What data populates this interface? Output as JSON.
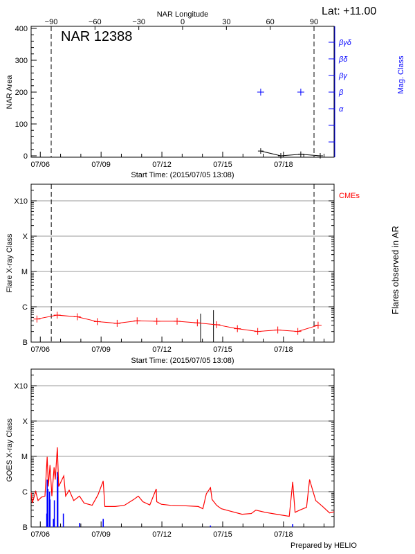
{
  "header": {
    "lat_label": "Lat: +11.00",
    "prepared_by": "Prepared by HELIO"
  },
  "colors": {
    "axis": "#000000",
    "grid": "#999999",
    "mag_class": "#0000ff",
    "flare": "#ff0000",
    "goes_long": "#ff0000",
    "goes_short": "#0000ff",
    "cme": "#ff0000"
  },
  "chart_data": [
    {
      "type": "line",
      "title": "NAR 12388",
      "xlabel": "Start Time: (2015/07/05 13:08)",
      "ylabel": "NAR Area",
      "y2label": "Mag. Class",
      "top_axis_label": "NAR Longitude",
      "top_ticks": [
        -90,
        -60,
        -30,
        0,
        30,
        60,
        90
      ],
      "limb_longitudes": [
        -90,
        90
      ],
      "xlim": [
        "2015-07-05T13:08",
        "2015-07-20T12:00"
      ],
      "x_ticks": [
        "07/06",
        "07/09",
        "07/12",
        "07/15",
        "07/18"
      ],
      "ylim": [
        0,
        400
      ],
      "y_ticks": [
        0,
        100,
        200,
        300,
        400
      ],
      "mag_classes": [
        "α",
        "β",
        "βγ",
        "βδ",
        "βγδ"
      ],
      "area_series": {
        "x": [
          "2015-07-16T21:00",
          "2015-07-17T20:50",
          "2015-07-18T20:30",
          "2015-07-19T19:30"
        ],
        "y": [
          15,
          0,
          5,
          0
        ]
      },
      "mag_series": {
        "x": [
          "2015-07-16T21:00",
          "2015-07-18T20:30"
        ],
        "class": [
          "β",
          "β"
        ]
      }
    },
    {
      "type": "line",
      "xlabel": "Start Time: (2015/07/05 13:08)",
      "ylabel": "Flare X-ray Class",
      "y2label": "Flares observed in AR",
      "cme_label": "CMEs",
      "limb_times": [
        "2015-07-06T13:00",
        "2015-07-19T12:10"
      ],
      "xlim": [
        "2015-07-05T13:08",
        "2015-07-20T12:00"
      ],
      "x_ticks": [
        "07/06",
        "07/09",
        "07/12",
        "07/15",
        "07/18"
      ],
      "y_scale": "log",
      "ylim": [
        1e-07,
        0.003
      ],
      "y_ticks": [
        {
          "label": "B",
          "value": 1e-07
        },
        {
          "label": "C",
          "value": 1e-06
        },
        {
          "label": "M",
          "value": 1e-05
        },
        {
          "label": "X",
          "value": 0.0001
        },
        {
          "label": "X10",
          "value": 0.001
        }
      ],
      "grid": true,
      "flare_series": {
        "x": [
          "2015-07-05T20:00",
          "2015-07-06T20:00",
          "2015-07-07T19:45",
          "2015-07-08T19:30",
          "2015-07-09T19:00",
          "2015-07-10T18:40",
          "2015-07-11T18:00",
          "2015-07-12T18:00",
          "2015-07-13T18:00",
          "2015-07-14T17:00",
          "2015-07-15T17:25",
          "2015-07-16T17:30",
          "2015-07-17T17:15",
          "2015-07-18T17:00",
          "2015-07-19T17:00"
        ],
        "y": [
          4.5e-07,
          5.8e-07,
          5.2e-07,
          3.8e-07,
          3.4e-07,
          4e-07,
          3.9e-07,
          3.9e-07,
          3.5e-07,
          3.1e-07,
          2.4e-07,
          2e-07,
          2.2e-07,
          2e-07,
          3e-07
        ]
      },
      "event_lines": {
        "x": [
          "2015-07-13T21:50",
          "2015-07-14T13:05"
        ],
        "y": [
          6.4e-07,
          8e-07
        ]
      }
    },
    {
      "type": "line",
      "ylabel": "GOES X-ray Class",
      "xlim": [
        "2015-07-05T13:08",
        "2015-07-20T12:00"
      ],
      "x_ticks": [
        "07/06",
        "07/09",
        "07/12",
        "07/15",
        "07/18"
      ],
      "y_scale": "log",
      "ylim": [
        1e-07,
        0.003
      ],
      "y_ticks": [
        {
          "label": "B",
          "value": 1e-07
        },
        {
          "label": "C",
          "value": 1e-06
        },
        {
          "label": "M",
          "value": 1e-05
        },
        {
          "label": "X",
          "value": 0.0001
        },
        {
          "label": "X10",
          "value": 0.001
        }
      ],
      "grid": true,
      "goes_long": {
        "x": [
          "2015-07-05T13:10",
          "2015-07-05T14:30",
          "2015-07-05T18:30",
          "2015-07-05T21:20",
          "2015-07-06T01:20",
          "2015-07-06T05:30",
          "2015-07-06T08:10",
          "2015-07-06T09:30",
          "2015-07-06T11:30",
          "2015-07-06T13:40",
          "2015-07-06T16:20",
          "2015-07-06T17:45",
          "2015-07-06T20:10",
          "2015-07-06T21:50",
          "2015-07-07T03:50",
          "2015-07-07T06:00",
          "2015-07-07T10:10",
          "2015-07-07T15:35",
          "2015-07-07T22:25",
          "2015-07-08T03:50",
          "2015-07-08T13:25",
          "2015-07-08T20:15",
          "2015-07-09T02:30",
          "2015-07-09T04:25",
          "2015-07-09T16:45",
          "2015-07-10T03:35",
          "2015-07-10T14:35",
          "2015-07-10T20:00",
          "2015-07-11T01:30",
          "2015-07-11T09:40",
          "2015-07-11T17:20",
          "2015-07-11T17:55",
          "2015-07-11T23:20",
          "2015-07-12T10:15",
          "2015-07-13T02:35",
          "2015-07-13T19:00",
          "2015-07-14T00:30",
          "2015-07-14T04:35",
          "2015-07-14T09:30",
          "2015-07-14T11:25",
          "2015-07-14T16:50",
          "2015-07-14T22:20",
          "2015-07-15T09:10",
          "2015-07-15T22:55",
          "2015-07-16T09:50",
          "2015-07-16T15:15",
          "2015-07-17T02:10",
          "2015-07-17T15:50",
          "2015-07-18T06:50",
          "2015-07-18T10:55",
          "2015-07-18T13:40",
          "2015-07-18T19:05",
          "2015-07-19T03:20",
          "2015-07-19T06:55",
          "2015-07-19T10:05",
          "2015-07-19T14:10",
          "2015-07-19T22:25",
          "2015-07-20T06:35",
          "2015-07-20T12:00"
        ],
        "y": [
          9.4e-07,
          4.8e-07,
          1e-06,
          5.6e-07,
          7e-07,
          7.5e-07,
          9.7e-06,
          1.4e-06,
          5.7e-06,
          7.5e-07,
          4.9e-06,
          2.2e-06,
          1.8e-05,
          1.4e-06,
          2.8e-06,
          7.5e-07,
          1.1e-06,
          5.6e-07,
          7.5e-07,
          4.8e-07,
          4.1e-07,
          8.1e-07,
          2e-06,
          3.8e-07,
          3.8e-07,
          4.1e-07,
          6e-07,
          7.5e-07,
          5.2e-07,
          4.2e-07,
          1.2e-06,
          5.2e-07,
          4.4e-07,
          4.1e-07,
          4e-07,
          3.8e-07,
          3.3e-07,
          8.7e-07,
          1.3e-06,
          6e-07,
          4.1e-07,
          3.3e-07,
          2.8e-07,
          2.3e-07,
          2.4e-07,
          3e-07,
          2.6e-07,
          2.3e-07,
          2e-07,
          1.9e-06,
          2.6e-07,
          3e-07,
          3.6e-07,
          2.2e-06,
          1.2e-06,
          5.6e-07,
          3.8e-07,
          2.5e-07,
          2.7e-07
        ]
      },
      "goes_short": {
        "x": [
          "2015-07-06T07:40",
          "2015-07-06T08:10",
          "2015-07-06T09:00",
          "2015-07-06T10:55",
          "2015-07-06T11:30",
          "2015-07-06T15:35",
          "2015-07-06T16:40",
          "2015-07-06T20:10",
          "2015-07-06T20:45",
          "2015-07-07T03:20",
          "2015-07-07T22:25",
          "2015-07-09T02:30",
          "2015-07-14T09:30",
          "2015-07-18T10:55"
        ],
        "y": [
          2.4e-07,
          2.2e-06,
          1.2e-06,
          1e-06,
          6e-07,
          1.7e-07,
          5.7e-07,
          3.6e-06,
          2.6e-06,
          2.4e-07,
          1.3e-07,
          1.7e-07,
          1.1e-07,
          1.2e-07
        ]
      }
    }
  ]
}
